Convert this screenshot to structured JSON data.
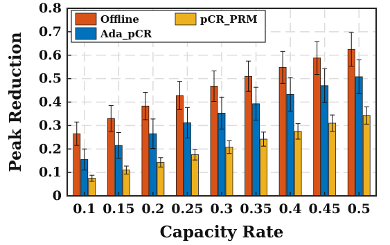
{
  "chart_data": {
    "type": "bar",
    "xlabel": "Capacity Rate",
    "ylabel": "Peak Reduction",
    "categories": [
      "0.1",
      "0.15",
      "0.2",
      "0.25",
      "0.3",
      "0.35",
      "0.4",
      "0.45",
      "0.5"
    ],
    "ylim": [
      0,
      0.8
    ],
    "yticks": [
      "0",
      "0.1",
      "0.2",
      "0.3",
      "0.4",
      "0.5",
      "0.6",
      "0.7",
      "0.8"
    ],
    "grid": true,
    "legend_position": "top-left",
    "series": [
      {
        "name": "Offline",
        "color": "#D95319",
        "values": [
          0.265,
          0.33,
          0.383,
          0.428,
          0.468,
          0.51,
          0.548,
          0.588,
          0.625
        ],
        "errors": [
          0.05,
          0.055,
          0.058,
          0.06,
          0.065,
          0.065,
          0.068,
          0.07,
          0.072
        ]
      },
      {
        "name": "Ada_pCR",
        "color": "#0072BD",
        "values": [
          0.155,
          0.215,
          0.265,
          0.312,
          0.353,
          0.393,
          0.433,
          0.47,
          0.508
        ],
        "errors": [
          0.045,
          0.055,
          0.063,
          0.065,
          0.068,
          0.07,
          0.072,
          0.072,
          0.072
        ]
      },
      {
        "name": "pCR_PRM",
        "color": "#EDB120",
        "values": [
          0.075,
          0.11,
          0.143,
          0.176,
          0.208,
          0.242,
          0.275,
          0.31,
          0.343
        ],
        "errors": [
          0.013,
          0.017,
          0.02,
          0.023,
          0.027,
          0.03,
          0.033,
          0.035,
          0.037
        ]
      }
    ]
  }
}
